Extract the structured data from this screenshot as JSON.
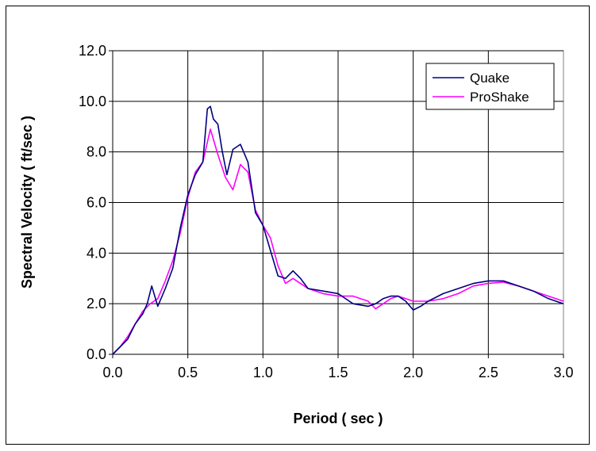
{
  "chart_data": {
    "type": "line",
    "title": "",
    "xlabel": "Period ( sec )",
    "ylabel": "Spectral Velocity ( ft/sec )",
    "xlim": [
      0.0,
      3.0
    ],
    "ylim": [
      0.0,
      12.0
    ],
    "x_ticks": [
      "0.0",
      "0.5",
      "1.0",
      "1.5",
      "2.0",
      "2.5",
      "3.0"
    ],
    "y_ticks": [
      "0.0",
      "2.0",
      "4.0",
      "6.0",
      "8.0",
      "10.0",
      "12.0"
    ],
    "grid": true,
    "legend_position": "top-right",
    "series": [
      {
        "name": "Quake",
        "color": "#000080",
        "x": [
          0.0,
          0.05,
          0.1,
          0.15,
          0.2,
          0.23,
          0.26,
          0.3,
          0.35,
          0.4,
          0.45,
          0.5,
          0.55,
          0.6,
          0.63,
          0.65,
          0.67,
          0.7,
          0.73,
          0.76,
          0.8,
          0.85,
          0.9,
          0.95,
          1.0,
          1.05,
          1.1,
          1.15,
          1.2,
          1.25,
          1.3,
          1.4,
          1.5,
          1.6,
          1.65,
          1.7,
          1.75,
          1.8,
          1.85,
          1.9,
          1.95,
          2.0,
          2.05,
          2.1,
          2.2,
          2.3,
          2.4,
          2.5,
          2.6,
          2.7,
          2.8,
          2.9,
          3.0
        ],
        "y": [
          0.0,
          0.3,
          0.6,
          1.2,
          1.6,
          2.0,
          2.7,
          1.9,
          2.6,
          3.4,
          5.0,
          6.3,
          7.1,
          7.6,
          9.7,
          9.8,
          9.3,
          9.1,
          8.0,
          7.1,
          8.1,
          8.3,
          7.6,
          5.6,
          5.1,
          4.1,
          3.1,
          3.0,
          3.3,
          3.0,
          2.6,
          2.5,
          2.4,
          2.0,
          1.95,
          1.9,
          2.0,
          2.2,
          2.3,
          2.3,
          2.1,
          1.75,
          1.9,
          2.1,
          2.4,
          2.6,
          2.8,
          2.9,
          2.9,
          2.7,
          2.5,
          2.2,
          2.0
        ]
      },
      {
        "name": "ProShake",
        "color": "#FF00FF",
        "x": [
          0.0,
          0.05,
          0.1,
          0.15,
          0.2,
          0.25,
          0.3,
          0.35,
          0.4,
          0.45,
          0.5,
          0.55,
          0.6,
          0.65,
          0.7,
          0.75,
          0.8,
          0.85,
          0.9,
          0.95,
          1.0,
          1.05,
          1.1,
          1.15,
          1.2,
          1.3,
          1.4,
          1.5,
          1.6,
          1.7,
          1.75,
          1.8,
          1.85,
          1.9,
          1.95,
          2.0,
          2.1,
          2.2,
          2.3,
          2.4,
          2.5,
          2.6,
          2.7,
          2.8,
          2.9,
          3.0
        ],
        "y": [
          0.0,
          0.3,
          0.7,
          1.2,
          1.7,
          2.0,
          2.2,
          2.9,
          3.7,
          4.8,
          6.2,
          7.2,
          7.6,
          8.9,
          7.9,
          7.0,
          6.5,
          7.5,
          7.2,
          5.7,
          5.1,
          4.6,
          3.5,
          2.8,
          3.0,
          2.6,
          2.4,
          2.3,
          2.3,
          2.1,
          1.8,
          2.0,
          2.2,
          2.3,
          2.2,
          2.1,
          2.1,
          2.2,
          2.4,
          2.7,
          2.8,
          2.85,
          2.7,
          2.5,
          2.3,
          2.1
        ]
      }
    ]
  }
}
